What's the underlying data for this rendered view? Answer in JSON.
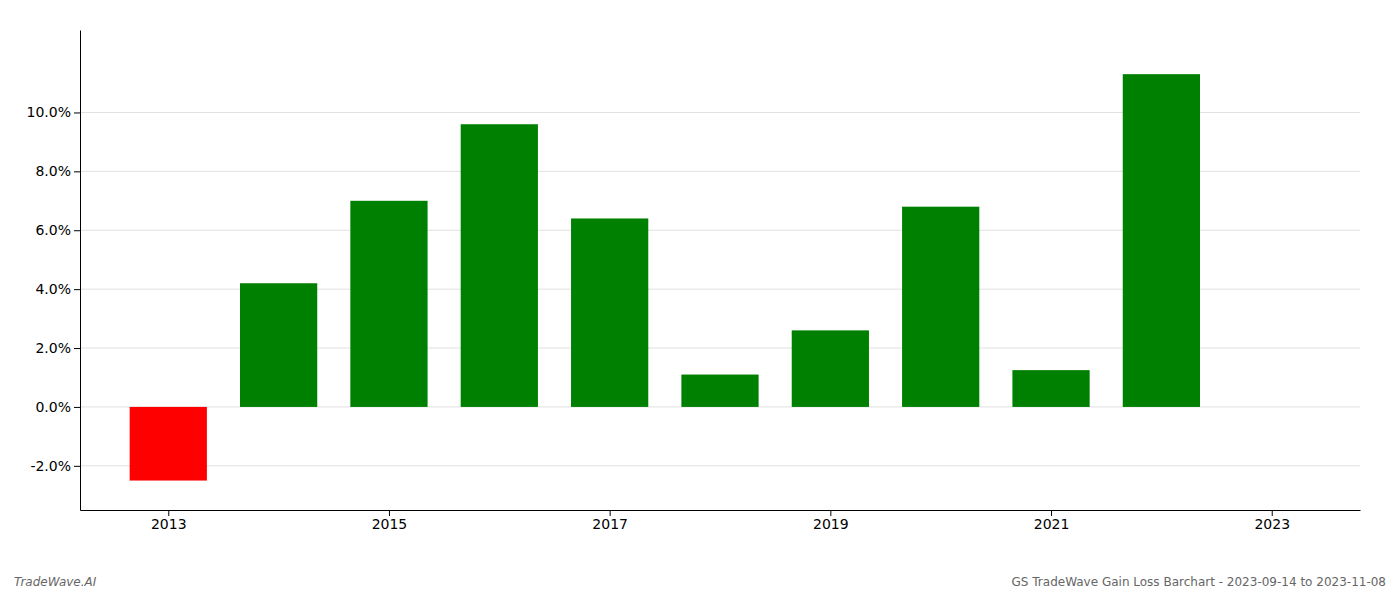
{
  "chart_data": {
    "type": "bar",
    "x": [
      2013,
      2014,
      2015,
      2016,
      2017,
      2018,
      2019,
      2020,
      2021,
      2022
    ],
    "values": [
      -0.025,
      0.042,
      0.07,
      0.096,
      0.064,
      0.011,
      0.026,
      0.068,
      0.0125,
      0.113
    ],
    "colors": [
      "#ff0000",
      "#008000",
      "#008000",
      "#008000",
      "#008000",
      "#008000",
      "#008000",
      "#008000",
      "#008000",
      "#008000"
    ],
    "xlim": [
      2012.2,
      2023.8
    ],
    "xticks": [
      2013,
      2015,
      2017,
      2019,
      2021,
      2023
    ],
    "ylim": [
      -0.035,
      0.128
    ],
    "yticks": [
      {
        "value": -0.02,
        "label": "-2.0%"
      },
      {
        "value": 0.0,
        "label": "0.0%"
      },
      {
        "value": 0.02,
        "label": "2.0%"
      },
      {
        "value": 0.04,
        "label": "4.0%"
      },
      {
        "value": 0.06,
        "label": "6.0%"
      },
      {
        "value": 0.08,
        "label": "8.0%"
      },
      {
        "value": 0.1,
        "label": "10.0%"
      }
    ],
    "grid": true,
    "annotations": [
      "TradeWave.AI",
      "GS TradeWave Gain Loss Barchart - 2023-09-14 to 2023-11-08"
    ]
  }
}
